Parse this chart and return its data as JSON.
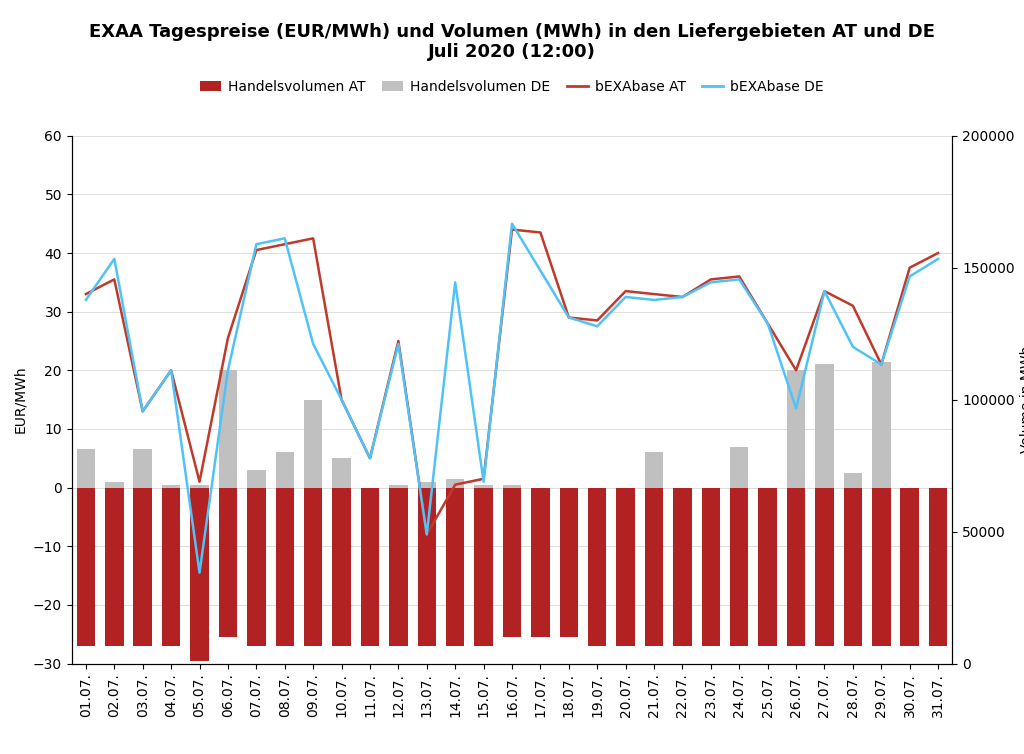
{
  "title": "EXAA Tagespreise (EUR/MWh) und Volumen (MWh) in den Liefergebieten AT und DE\nJuli 2020 (12:00)",
  "ylabel_left": "EUR/MWh",
  "ylabel_right": "Volume in MWh",
  "dates": [
    "01.07.",
    "02.07.",
    "03.07.",
    "04.07.",
    "05.07.",
    "06.07.",
    "07.07.",
    "08.07.",
    "09.07.",
    "10.07.",
    "11.07.",
    "12.07.",
    "13.07.",
    "14.07.",
    "15.07.",
    "16.07.",
    "17.07.",
    "18.07.",
    "19.07.",
    "20.07.",
    "21.07.",
    "22.07.",
    "23.07.",
    "24.07.",
    "25.07.",
    "26.07.",
    "27.07.",
    "28.07.",
    "29.07.",
    "30.07.",
    "31.07."
  ],
  "bEXAbase_AT": [
    33.0,
    35.5,
    13.0,
    20.0,
    1.0,
    25.5,
    40.5,
    41.5,
    42.5,
    15.0,
    5.0,
    25.0,
    -8.0,
    0.5,
    1.5,
    44.0,
    43.5,
    29.0,
    28.5,
    33.5,
    33.0,
    32.5,
    35.5,
    36.0,
    28.0,
    20.0,
    33.5,
    31.0,
    21.0,
    37.5,
    40.0
  ],
  "bEXAbase_DE": [
    32.0,
    39.0,
    13.0,
    20.0,
    -14.5,
    20.0,
    41.5,
    42.5,
    24.5,
    15.0,
    5.0,
    24.5,
    -8.0,
    35.0,
    1.0,
    45.0,
    37.0,
    29.0,
    27.5,
    32.5,
    32.0,
    32.5,
    35.0,
    35.5,
    28.0,
    13.5,
    33.5,
    24.0,
    21.0,
    36.0,
    39.0
  ],
  "vol_AT_left": [
    -27.0,
    -27.0,
    -27.0,
    -27.0,
    -29.5,
    -25.5,
    -27.0,
    -27.0,
    -27.0,
    -27.0,
    -27.0,
    -27.0,
    -27.0,
    -27.0,
    -27.0,
    -25.5,
    -25.5,
    -25.5,
    -27.0,
    -27.0,
    -27.0,
    -27.0,
    -27.0,
    -27.0,
    -27.0,
    -27.0,
    -27.0,
    -27.0,
    -27.0,
    -27.0,
    -27.0
  ],
  "vol_DE_left": [
    6.5,
    1.0,
    6.5,
    0.5,
    0.5,
    20.0,
    3.0,
    6.0,
    15.0,
    5.0,
    -8.0,
    0.5,
    1.0,
    1.5,
    0.5,
    0.5,
    -2.5,
    -3.0,
    -10.5,
    0.0,
    6.0,
    -2.5,
    -2.5,
    7.0,
    -3.0,
    20.0,
    21.0,
    2.5,
    21.5,
    -5.0,
    -5.0
  ],
  "background_color": "#ffffff",
  "bar_color_AT": "#b22222",
  "bar_color_DE": "#c0c0c0",
  "line_color_AT": "#c0392b",
  "line_color_DE": "#4fc3f7",
  "ylim_left": [
    -30,
    60
  ],
  "ylim_right": [
    0,
    200000
  ],
  "yticks_left": [
    -30,
    -20,
    -10,
    0,
    10,
    20,
    30,
    40,
    50,
    60
  ],
  "yticks_right": [
    0,
    50000,
    100000,
    150000,
    200000
  ],
  "title_fontsize": 13,
  "legend_fontsize": 10,
  "axis_fontsize": 10,
  "bar_width": 0.65
}
